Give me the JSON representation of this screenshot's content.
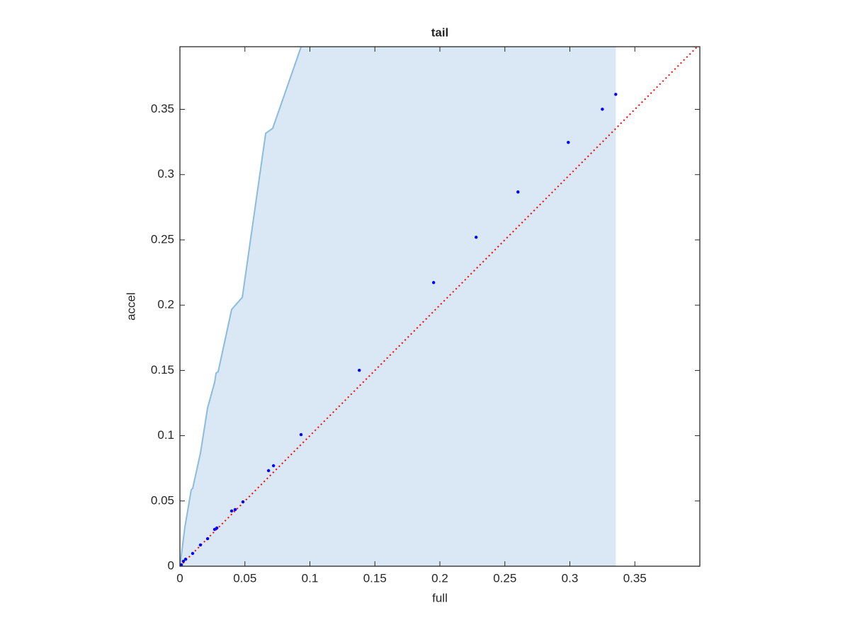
{
  "chart_data": {
    "type": "scatter",
    "title": "tail",
    "x_label": "full",
    "y_label": "accel",
    "xlim": [
      0,
      0.4
    ],
    "ylim": [
      0,
      0.398
    ],
    "xticks": [
      0,
      0.05,
      0.1,
      0.15,
      0.2,
      0.25,
      0.3,
      0.35
    ],
    "yticks": [
      0,
      0.05,
      0.1,
      0.15,
      0.2,
      0.25,
      0.3,
      0.35
    ],
    "box": true,
    "series": [
      {
        "style": "area",
        "color": "#d9e8f4",
        "x": [
          0,
          0.0038,
          0.0087,
          0.0098,
          0.0158,
          0.0213,
          0.0267,
          0.0278,
          0.0294,
          0.0398,
          0.048,
          0.066,
          0.0714,
          0.0932,
          0.3353,
          0.3353
        ],
        "y": [
          0,
          0.0298,
          0.0585,
          0.0596,
          0.0867,
          0.1214,
          0.1409,
          0.148,
          0.149,
          0.1967,
          0.206,
          0.3317,
          0.3355,
          0.3978,
          0.3978,
          0
        ]
      },
      {
        "style": "line",
        "color": "#8cbcdc",
        "x": [
          0,
          0.0038,
          0.0087,
          0.0098,
          0.0158,
          0.0213,
          0.0267,
          0.0278,
          0.0294,
          0.0398,
          0.048,
          0.066,
          0.0714,
          0.0932
        ],
        "y": [
          0,
          0.0298,
          0.0585,
          0.0596,
          0.0867,
          0.1214,
          0.1409,
          0.148,
          0.149,
          0.1967,
          0.206,
          0.3317,
          0.3355,
          0.3978
        ]
      },
      {
        "style": "dotted",
        "color": "#ff0000",
        "x": [
          0,
          0.4
        ],
        "y": [
          0,
          0.4
        ]
      },
      {
        "style": "points",
        "color": "#0000ff",
        "x": [
          0,
          0.0011,
          0.0027,
          0.0044,
          0.0098,
          0.0158,
          0.0213,
          0.0267,
          0.0284,
          0.0398,
          0.0425,
          0.0485,
          0.0682,
          0.072,
          0.0932,
          0.138,
          0.1952,
          0.2279,
          0.2601,
          0.2988,
          0.325,
          0.3353
        ],
        "y": [
          0,
          0.0011,
          0.0038,
          0.0054,
          0.0098,
          0.0163,
          0.0211,
          0.0282,
          0.0293,
          0.0423,
          0.0434,
          0.0493,
          0.0732,
          0.077,
          0.1008,
          0.1501,
          0.2173,
          0.252,
          0.2867,
          0.3247,
          0.3501,
          0.3615
        ]
      }
    ]
  }
}
